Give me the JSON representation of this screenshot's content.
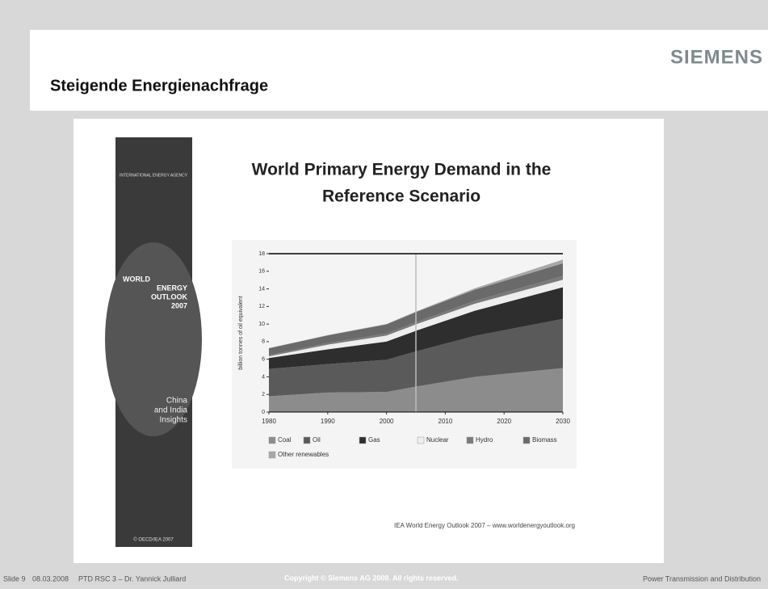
{
  "header": {
    "title": "Steigende Energienachfrage",
    "logo": "SIEMENS"
  },
  "cover": {
    "agency": "INTERNATIONAL ENERGY AGENCY",
    "title_lines": [
      "WORLD",
      "ENERGY",
      "OUTLOOK",
      "2007"
    ],
    "subtitle_lines": [
      "China",
      "and India",
      "Insights"
    ],
    "footer": "© OECD/IEA 2007"
  },
  "chart_data": {
    "type": "stacked_area",
    "title_lines": [
      "World Primary Energy Demand in the",
      "Reference Scenario"
    ],
    "y_label": "billion tonnes of oil equivalent",
    "x": [
      1980,
      1990,
      2000,
      2005,
      2015,
      2030
    ],
    "xlim": [
      1980,
      2030
    ],
    "xticks": [
      1980,
      1990,
      2000,
      2010,
      2020,
      2030
    ],
    "ylim": [
      0,
      18
    ],
    "yticks": [
      0,
      2,
      4,
      6,
      8,
      10,
      12,
      14,
      16,
      18
    ],
    "marker_x": 2005,
    "series": [
      {
        "name": "Coal",
        "color": "#8c8c8c",
        "values": [
          1.79,
          2.22,
          2.29,
          2.89,
          4.0,
          4.99
        ]
      },
      {
        "name": "Oil",
        "color": "#5a5a5a",
        "values": [
          3.11,
          3.23,
          3.65,
          4.0,
          4.66,
          5.59
        ]
      },
      {
        "name": "Gas",
        "color": "#2e2e2e",
        "values": [
          1.24,
          1.68,
          2.07,
          2.35,
          2.85,
          3.61
        ]
      },
      {
        "name": "Nuclear",
        "color": "#eeeeee",
        "values": [
          0.19,
          0.53,
          0.68,
          0.72,
          0.8,
          0.85
        ]
      },
      {
        "name": "Hydro",
        "color": "#7a7a7a",
        "values": [
          0.15,
          0.18,
          0.23,
          0.25,
          0.32,
          0.42
        ]
      },
      {
        "name": "Biomass",
        "color": "#6a6a6a",
        "values": [
          0.77,
          0.87,
          1.04,
          1.15,
          1.27,
          1.45
        ]
      },
      {
        "name": "Other renewables",
        "color": "#a8a8a8",
        "values": [
          0.01,
          0.04,
          0.05,
          0.06,
          0.16,
          0.42
        ]
      }
    ]
  },
  "source": "IEA World Energy Outlook 2007 – www.worldenergyoutlook.org",
  "footer": {
    "slide": "Slide 9",
    "date": "08.03.2008",
    "author": "PTD RSC 3 – Dr. Yannick Julliard",
    "copyright": "Copyright © Siemens AG 2008. All rights reserved.",
    "division": "Power Transmission and Distribution"
  }
}
